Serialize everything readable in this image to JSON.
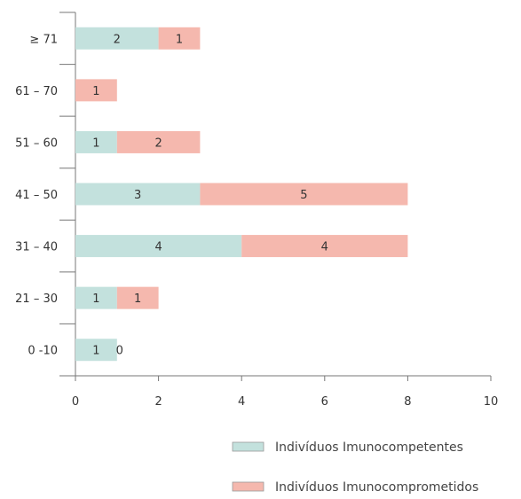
{
  "chart_data": {
    "type": "bar",
    "orientation": "horizontal",
    "stacked": true,
    "categories": [
      "≥ 71",
      "61 – 70",
      "51 – 60",
      "41 – 50",
      "31 – 40",
      "21 – 30",
      "0 -10"
    ],
    "series": [
      {
        "name": "Indivíduos Imunocompetentes",
        "values": [
          2,
          0,
          1,
          3,
          4,
          1,
          1
        ],
        "labels": [
          "2",
          "",
          "1",
          "3",
          "4",
          "1",
          "1"
        ],
        "color": "#c3e1dd"
      },
      {
        "name": "Indivíduos Imunocomprometidos",
        "values": [
          1,
          1,
          2,
          5,
          4,
          1,
          0
        ],
        "labels": [
          "1",
          "1",
          "2",
          "5",
          "4",
          "1",
          "0"
        ],
        "color": "#f5b8ae"
      }
    ],
    "xticks": [
      "0",
      "2",
      "4",
      "6",
      "8",
      "10"
    ],
    "xlim": [
      0,
      10
    ],
    "grid": false,
    "legend": "bottom-right"
  }
}
